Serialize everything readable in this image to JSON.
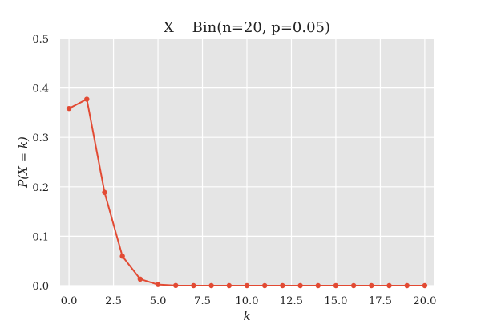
{
  "chart_data": {
    "type": "line",
    "title": "X    Bin(n=20, p=0.05)",
    "xlabel": "k",
    "ylabel": "P(X = k)",
    "x": [
      0,
      1,
      2,
      3,
      4,
      5,
      6,
      7,
      8,
      9,
      10,
      11,
      12,
      13,
      14,
      15,
      16,
      17,
      18,
      19,
      20
    ],
    "series": [
      {
        "values": [
          0.3585,
          0.3774,
          0.1887,
          0.0596,
          0.0133,
          0.0022,
          0.0003,
          0.0,
          0.0,
          0.0,
          0.0,
          0.0,
          0.0,
          0.0,
          0.0,
          0.0,
          0.0,
          0.0,
          0.0,
          0.0,
          0.0
        ],
        "color": "#e24a33"
      }
    ],
    "xlim": [
      -0.5,
      20.5
    ],
    "ylim": [
      0,
      0.5
    ],
    "xticks": [
      0.0,
      2.5,
      5.0,
      7.5,
      10.0,
      12.5,
      15.0,
      17.5,
      20.0
    ],
    "xtick_labels": [
      "0.0",
      "2.5",
      "5.0",
      "7.5",
      "10.0",
      "12.5",
      "15.0",
      "17.5",
      "20.0"
    ],
    "yticks": [
      0.0,
      0.1,
      0.2,
      0.3,
      0.4,
      0.5
    ],
    "ytick_labels": [
      "0.0",
      "0.1",
      "0.2",
      "0.3",
      "0.4",
      "0.5"
    ],
    "grid": true,
    "legend": "none",
    "background": "#e5e5e5",
    "grid_color": "#ffffff"
  }
}
